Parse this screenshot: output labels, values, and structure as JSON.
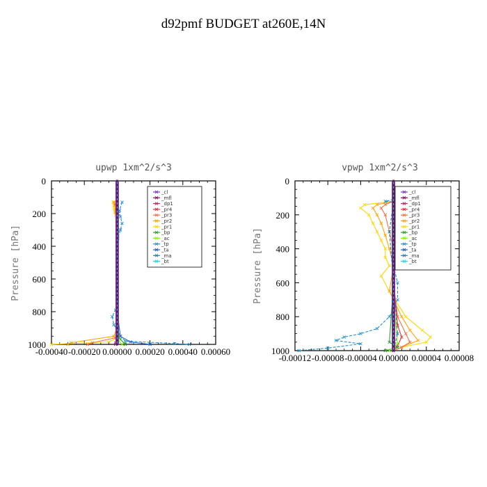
{
  "title": "d92pmf  BUDGET at260E,14N",
  "colors": {
    "cl": "#7b3fbf",
    "mfl": "#8b0a50",
    "dp1": "#b0306a",
    "pr4": "#e0303a",
    "pr3": "#f07040",
    "pr2": "#ffa500",
    "pr1": "#ffd700",
    "bp": "#2ca02c",
    "ac": "#7cfc00",
    "tp": "#1f8fd0",
    "ta": "#1f5fd0",
    "ma": "#2080a0",
    "bt": "#00e5ee"
  },
  "legend": [
    "_cl",
    "_mfl",
    "_dp1",
    "_pr4",
    "_pr3",
    "_pr2",
    "_pr1",
    "_bp",
    "_ac",
    "_tp",
    "_ta",
    "_ma",
    "_bt"
  ],
  "chart_data": [
    {
      "type": "line",
      "title": "upwp    1xm^2/s^3",
      "xlabel": "",
      "ylabel": "Pressure [hPa]",
      "xlim": [
        -0.0004,
        0.0006
      ],
      "ylim": [
        1000,
        0
      ],
      "xticks": [
        "-0.00040",
        "-0.00020",
        "0.00000",
        "0.00020",
        "0.00040",
        "0.00060"
      ],
      "xtick_values": [
        -0.0004,
        -0.0002,
        0,
        0.0002,
        0.0004,
        0.0006
      ],
      "yticks": [
        "0",
        "200",
        "400",
        "600",
        "800",
        "1000"
      ],
      "ytick_values": [
        0,
        200,
        400,
        600,
        800,
        1000
      ],
      "series": [
        {
          "key": "pr1",
          "x": [
            0,
            -2.5e-05,
            -2e-05,
            -2e-05,
            -1.5e-05,
            -1e-05,
            0,
            0,
            0,
            0,
            0,
            0,
            5e-06,
            0,
            -5e-05,
            -0.0004
          ],
          "y": [
            120,
            130,
            150,
            170,
            190,
            210,
            250,
            300,
            400,
            500,
            600,
            700,
            850,
            960,
            985,
            1000
          ]
        },
        {
          "key": "pr2",
          "x": [
            0,
            -2e-05,
            -1.5e-05,
            -1e-05,
            0,
            0,
            0,
            0,
            5e-06,
            -2e-05,
            -0.00028,
            -0.0003
          ],
          "y": [
            120,
            130,
            150,
            190,
            250,
            400,
            600,
            800,
            880,
            950,
            990,
            1000
          ]
        },
        {
          "key": "pr3",
          "x": [
            0,
            -1e-05,
            -5e-06,
            0,
            0,
            0,
            -1e-05,
            -0.00015,
            -0.00018
          ],
          "y": [
            120,
            140,
            180,
            300,
            600,
            900,
            960,
            990,
            1000
          ]
        },
        {
          "key": "dp1",
          "x": [
            0,
            5e-06,
            0,
            0,
            0,
            0,
            -1e-05,
            -1e-05
          ],
          "y": [
            120,
            200,
            400,
            600,
            800,
            950,
            990,
            1000
          ]
        },
        {
          "key": "tp",
          "x": [
            3e-05,
            1.5e-05,
            2e-05,
            3e-05,
            2e-05,
            5e-06,
            0,
            0,
            0,
            -1e-05,
            -3e-05,
            -2e-05,
            2e-05,
            5e-05,
            0.00035,
            0.00044
          ],
          "y": [
            130,
            180,
            220,
            260,
            300,
            350,
            400,
            600,
            760,
            790,
            830,
            880,
            950,
            980,
            995,
            1000
          ]
        },
        {
          "key": "ta",
          "x": [
            0,
            5e-06,
            0,
            0,
            0,
            2e-05,
            8e-05,
            0.0002
          ],
          "y": [
            120,
            200,
            400,
            600,
            800,
            950,
            985,
            1000
          ]
        },
        {
          "key": "bp",
          "x": [
            0,
            0,
            0,
            5e-06,
            1e-05,
            2e-05,
            4e-05,
            5e-05
          ],
          "y": [
            120,
            400,
            800,
            900,
            940,
            970,
            990,
            1000
          ]
        },
        {
          "key": "ac",
          "x": [
            0,
            0,
            5e-06,
            1e-05,
            3e-05
          ],
          "y": [
            120,
            600,
            950,
            980,
            1000
          ]
        },
        {
          "key": "cl",
          "x": [
            0,
            0
          ],
          "y": [
            0,
            1000
          ]
        },
        {
          "key": "mfl",
          "x": [
            0,
            0
          ],
          "y": [
            0,
            1000
          ]
        },
        {
          "key": "bt",
          "x": [
            0,
            0
          ],
          "y": [
            0,
            1000
          ]
        }
      ],
      "legend_position": "top-right"
    },
    {
      "type": "line",
      "title": "vpwp    1xm^2/s^3",
      "xlabel": "",
      "ylabel": "Pressure [hPa]",
      "xlim": [
        -0.00012,
        8e-05
      ],
      "ylim": [
        1000,
        0
      ],
      "xticks": [
        "-0.00012",
        "-0.00008",
        "-0.00004",
        "0.00000",
        "0.00004",
        "0.00008"
      ],
      "xtick_values": [
        -0.00012,
        -8e-05,
        -4e-05,
        0,
        4e-05,
        8e-05
      ],
      "yticks": [
        "0",
        "200",
        "400",
        "600",
        "800",
        "1000"
      ],
      "ytick_values": [
        0,
        200,
        400,
        600,
        800,
        1000
      ],
      "series": [
        {
          "key": "pr1",
          "x": [
            0,
            -3.5e-05,
            -4e-05,
            -3e-05,
            -2.5e-05,
            -2e-05,
            -1.5e-05,
            -1e-05,
            -1e-05,
            -5e-06,
            -1.5e-05,
            -5e-06,
            1.5e-05,
            3.5e-05,
            4.5e-05,
            4e-05,
            1e-05,
            0
          ],
          "y": [
            120,
            140,
            160,
            200,
            250,
            300,
            350,
            400,
            450,
            500,
            560,
            650,
            800,
            880,
            920,
            950,
            980,
            1000
          ]
        },
        {
          "key": "pr2",
          "x": [
            0,
            -2e-05,
            -2.5e-05,
            -2e-05,
            -1.5e-05,
            -1e-05,
            -5e-06,
            0,
            -5e-06,
            1e-05,
            2e-05,
            3e-05,
            1e-05,
            0
          ],
          "y": [
            120,
            140,
            160,
            200,
            250,
            320,
            400,
            500,
            650,
            800,
            880,
            940,
            980,
            1000
          ]
        },
        {
          "key": "pr3",
          "x": [
            0,
            -1e-05,
            -1.5e-05,
            -1e-05,
            -5e-06,
            0,
            0,
            5e-06,
            1.5e-05,
            2e-05,
            1e-05,
            0
          ],
          "y": [
            120,
            140,
            160,
            200,
            300,
            400,
            600,
            800,
            900,
            950,
            980,
            1000
          ]
        },
        {
          "key": "pr4",
          "x": [
            0,
            5e-06,
            1e-05,
            5e-06,
            0,
            0,
            5e-06,
            1e-05,
            5e-06,
            0
          ],
          "y": [
            120,
            140,
            160,
            200,
            300,
            600,
            850,
            920,
            970,
            1000
          ]
        },
        {
          "key": "tp",
          "x": [
            0,
            -1e-05,
            1e-05,
            4e-05,
            6e-05,
            3e-05,
            1e-05,
            5e-06,
            1e-05,
            5e-06,
            0,
            5e-06,
            5e-06,
            -5e-06,
            -2e-05,
            -4e-05,
            -6e-05,
            -7e-05,
            -4e-05,
            -8e-05,
            -0.000115
          ],
          "y": [
            110,
            120,
            130,
            140,
            150,
            160,
            200,
            300,
            340,
            400,
            500,
            600,
            700,
            800,
            870,
            900,
            920,
            940,
            960,
            985,
            1000
          ]
        },
        {
          "key": "bp",
          "x": [
            0,
            0,
            -5e-06,
            5e-06,
            -1e-05
          ],
          "y": [
            120,
            600,
            950,
            980,
            1000
          ]
        },
        {
          "key": "ac",
          "x": [
            0,
            0,
            5e-06,
            -5e-06
          ],
          "y": [
            120,
            700,
            960,
            1000
          ]
        },
        {
          "key": "ma",
          "x": [
            0,
            -5e-06,
            0,
            5e-06,
            0
          ],
          "y": [
            120,
            300,
            600,
            900,
            1000
          ]
        },
        {
          "key": "cl",
          "x": [
            0,
            0
          ],
          "y": [
            0,
            1000
          ]
        },
        {
          "key": "mfl",
          "x": [
            0,
            0
          ],
          "y": [
            0,
            1000
          ]
        },
        {
          "key": "bt",
          "x": [
            0,
            0
          ],
          "y": [
            0,
            1000
          ]
        }
      ],
      "legend_position": "top-right"
    }
  ]
}
